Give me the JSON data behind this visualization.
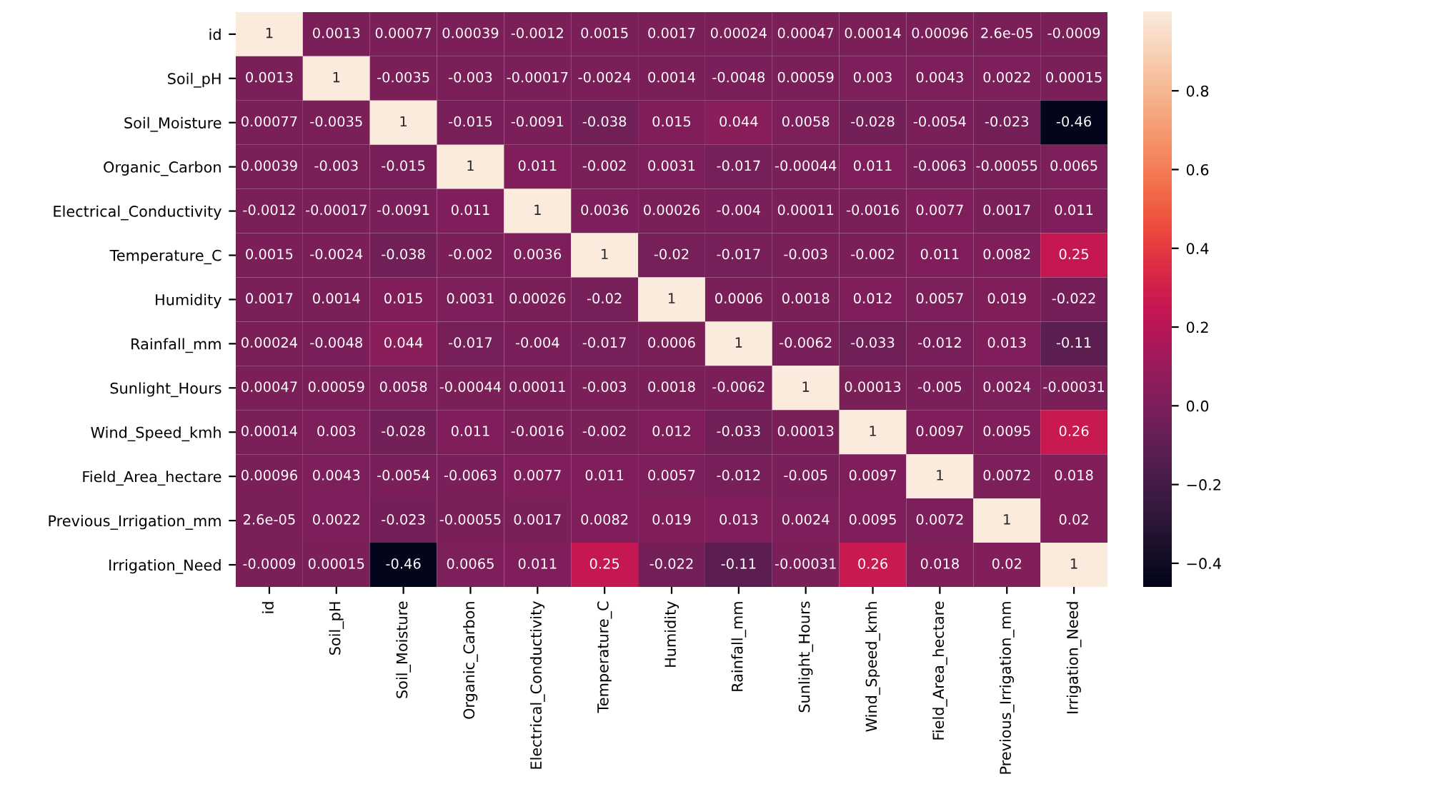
{
  "chart_data": {
    "type": "heatmap",
    "categories": [
      "id",
      "Soil_pH",
      "Soil_Moisture",
      "Organic_Carbon",
      "Electrical_Conductivity",
      "Temperature_C",
      "Humidity",
      "Rainfall_mm",
      "Sunlight_Hours",
      "Wind_Speed_kmh",
      "Field_Area_hectare",
      "Previous_Irrigation_mm",
      "Irrigation_Need"
    ],
    "y_categories": [
      "id",
      "Soil_pH",
      "Soil_Moisture",
      "Organic_Carbon",
      "Electrical_Conductivity",
      "Temperature_C",
      "Humidity",
      "Rainfall_mm",
      "Sunlight_Hours",
      "Wind_Speed_kmh",
      "Field_Area_hectare",
      "Previous_Irrigation_mm",
      "Irrigation_Need"
    ],
    "cells": [
      [
        1,
        0.0013,
        0.00077,
        0.00039,
        -0.0012,
        0.0015,
        0.0017,
        0.00024,
        0.00047,
        0.00014,
        0.00096,
        2.6e-05,
        -0.0009
      ],
      [
        0.0013,
        1,
        -0.0035,
        -0.003,
        -0.00017,
        -0.0024,
        0.0014,
        -0.0048,
        0.00059,
        0.003,
        0.0043,
        0.0022,
        0.00015
      ],
      [
        0.00077,
        -0.0035,
        1,
        -0.015,
        -0.0091,
        -0.038,
        0.015,
        0.044,
        0.0058,
        -0.028,
        -0.0054,
        -0.023,
        -0.46
      ],
      [
        0.00039,
        -0.003,
        -0.015,
        1,
        0.011,
        -0.002,
        0.0031,
        -0.017,
        -0.00044,
        0.011,
        -0.0063,
        -0.00055,
        0.0065
      ],
      [
        -0.0012,
        -0.00017,
        -0.0091,
        0.011,
        1,
        0.0036,
        0.00026,
        -0.004,
        0.00011,
        -0.0016,
        0.0077,
        0.0017,
        0.011
      ],
      [
        0.0015,
        -0.0024,
        -0.038,
        -0.002,
        0.0036,
        1,
        -0.02,
        -0.017,
        -0.003,
        -0.002,
        0.011,
        0.0082,
        0.25
      ],
      [
        0.0017,
        0.0014,
        0.015,
        0.0031,
        0.00026,
        -0.02,
        1,
        0.0006,
        0.0018,
        0.012,
        0.0057,
        0.019,
        -0.022
      ],
      [
        0.00024,
        -0.0048,
        0.044,
        -0.017,
        -0.004,
        -0.017,
        0.0006,
        1,
        -0.0062,
        -0.033,
        -0.012,
        0.013,
        -0.11
      ],
      [
        0.00047,
        0.00059,
        0.0058,
        -0.00044,
        0.00011,
        -0.003,
        0.0018,
        -0.0062,
        1,
        0.00013,
        -0.005,
        0.0024,
        -0.00031
      ],
      [
        0.00014,
        0.003,
        -0.028,
        0.011,
        -0.0016,
        -0.002,
        0.012,
        -0.033,
        0.00013,
        1,
        0.0097,
        0.0095,
        0.26
      ],
      [
        0.00096,
        0.0043,
        -0.0054,
        -0.0063,
        0.0077,
        0.011,
        0.0057,
        -0.012,
        -0.005,
        0.0097,
        1,
        0.0072,
        0.018
      ],
      [
        2.6e-05,
        0.0022,
        -0.023,
        -0.00055,
        0.0017,
        0.0082,
        0.019,
        0.013,
        0.0024,
        0.0095,
        0.0072,
        1,
        0.02
      ],
      [
        -0.0009,
        0.00015,
        -0.46,
        0.0065,
        0.011,
        0.25,
        -0.022,
        -0.11,
        -0.00031,
        0.26,
        0.018,
        0.02,
        1
      ]
    ],
    "data_labels": true,
    "clim": [
      -0.46,
      1
    ],
    "cticks": [
      {
        "value": -0.4,
        "label": "−0.4"
      },
      {
        "value": -0.2,
        "label": "−0.2"
      },
      {
        "value": 0,
        "label": "0.0"
      },
      0.2,
      0.4,
      0.6,
      0.8
    ]
  }
}
